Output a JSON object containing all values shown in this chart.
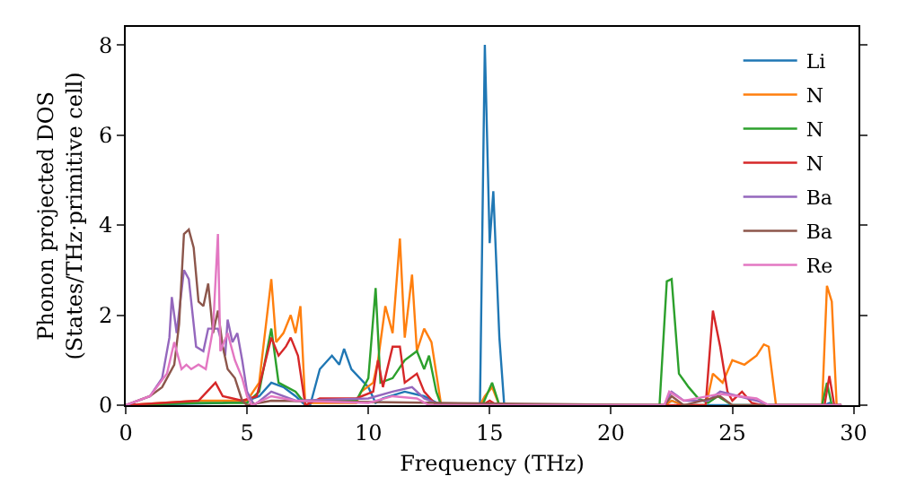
{
  "chart_data": {
    "type": "line",
    "xlabel": "Frequency (THz)",
    "ylabel": "Phonon projected DOS\n(States/THz·primitive cell)",
    "xlim": [
      0,
      30.2
    ],
    "ylim": [
      0,
      8.4
    ],
    "xticks": [
      0,
      5,
      10,
      15,
      20,
      25,
      30
    ],
    "yticks": [
      0,
      2,
      4,
      6,
      8
    ],
    "grid": false,
    "legend": "top right",
    "marker": "none",
    "line_style": "solid",
    "series": [
      {
        "name": "Li",
        "color": "#1f77b4",
        "x": [
          0,
          4,
          5,
          5.5,
          6,
          6.5,
          7,
          7.4,
          7.6,
          8,
          8.5,
          8.8,
          9,
          9.3,
          10,
          10.3,
          10.6,
          11.5,
          12.3,
          13,
          14.6,
          14.8,
          15,
          15.15,
          15.4,
          15.6,
          22.2,
          22.5,
          23,
          28.8,
          29,
          29.2,
          29.5
        ],
        "values": [
          0,
          0.05,
          0.1,
          0.2,
          0.5,
          0.4,
          0.2,
          0,
          0,
          0.8,
          1.1,
          0.9,
          1.25,
          0.8,
          0.4,
          0.05,
          0.15,
          0.3,
          0.2,
          0,
          0,
          8.0,
          3.6,
          4.75,
          1.5,
          0,
          0,
          0.1,
          0,
          0,
          0.05,
          0,
          0
        ]
      },
      {
        "name": "N",
        "color": "#ff7f0e",
        "x": [
          0,
          3,
          5,
          5.5,
          6,
          6.2,
          6.5,
          6.8,
          7,
          7.2,
          7.4,
          7.6,
          9.5,
          9.7,
          10.2,
          10.4,
          10.7,
          11,
          11.3,
          11.5,
          11.8,
          12,
          12.3,
          12.6,
          13,
          14.6,
          14.8,
          15.1,
          15.4,
          22.2,
          22.5,
          23,
          23.9,
          24,
          24.2,
          24.6,
          25,
          25.5,
          26,
          26.3,
          26.5,
          26.8,
          28.7,
          28.9,
          29.1,
          29.3,
          29.5
        ],
        "values": [
          0,
          0.1,
          0.1,
          0.5,
          2.8,
          1.4,
          1.6,
          2.0,
          1.6,
          2.2,
          0,
          0.05,
          0.05,
          0.3,
          0.5,
          1.0,
          2.2,
          1.6,
          3.7,
          1.5,
          2.9,
          1.2,
          1.7,
          1.4,
          0,
          0,
          0.2,
          0.4,
          0,
          0,
          0.1,
          0,
          0,
          0.2,
          0.7,
          0.5,
          1.0,
          0.9,
          1.1,
          1.35,
          1.3,
          0,
          0,
          2.65,
          2.3,
          0,
          0
        ]
      },
      {
        "name": "N",
        "color": "#2ca02c",
        "x": [
          0,
          3,
          5,
          5.5,
          6,
          6.3,
          7,
          7.3,
          9.5,
          10,
          10.3,
          10.5,
          11,
          11.5,
          12,
          12.3,
          12.5,
          12.8,
          13,
          14.7,
          15.1,
          15.4,
          22,
          22.3,
          22.5,
          22.8,
          23.2,
          23.6,
          24,
          24.4,
          25,
          28.7,
          28.9,
          29.1,
          29.5
        ],
        "values": [
          0,
          0.05,
          0.05,
          0.3,
          1.7,
          0.5,
          0.3,
          0.1,
          0.1,
          0.6,
          2.6,
          0.5,
          0.6,
          1.0,
          1.2,
          0.8,
          1.1,
          0.3,
          0,
          0,
          0.5,
          0,
          0,
          2.75,
          2.8,
          0.7,
          0.4,
          0.15,
          0.05,
          0.2,
          0,
          0,
          0.5,
          0,
          0
        ]
      },
      {
        "name": "N",
        "color": "#d62728",
        "x": [
          0,
          3,
          3.7,
          4,
          4.8,
          5.4,
          6,
          6.3,
          6.6,
          6.8,
          7.1,
          7.4,
          8,
          9.5,
          10.2,
          10.4,
          10.6,
          11,
          11.3,
          11.5,
          12,
          12.3,
          12.8,
          14.7,
          15,
          15.3,
          23.9,
          24.2,
          24.5,
          24.8,
          25,
          25.4,
          25.8,
          26.2,
          28.8,
          29,
          29.2,
          29.5
        ],
        "values": [
          0,
          0.1,
          0.5,
          0.2,
          0.1,
          0.2,
          1.5,
          1.1,
          1.3,
          1.5,
          1.1,
          0,
          0.15,
          0.15,
          0.3,
          1.0,
          0.4,
          1.3,
          1.3,
          0.5,
          0.7,
          0.3,
          0,
          0,
          0.1,
          0,
          0,
          2.1,
          1.3,
          0.3,
          0.1,
          0.3,
          0.05,
          0,
          0,
          0.65,
          0,
          0
        ]
      },
      {
        "name": "Ba",
        "color": "#9467bd",
        "x": [
          0,
          1,
          1.5,
          1.8,
          1.9,
          2.1,
          2.4,
          2.6,
          2.9,
          3.2,
          3.4,
          3.8,
          4.1,
          4.2,
          4.4,
          4.6,
          4.8,
          5,
          5.3,
          6,
          7,
          10,
          11,
          11.8,
          12.3,
          13,
          22.2,
          22.5,
          23,
          24,
          24.5,
          26,
          26.5,
          29.5
        ],
        "values": [
          0,
          0.2,
          0.6,
          1.5,
          2.4,
          1.6,
          3.0,
          2.8,
          1.3,
          1.2,
          1.7,
          1.7,
          1.1,
          1.9,
          1.4,
          1.6,
          1.0,
          0.3,
          0,
          0.3,
          0.1,
          0.15,
          0.3,
          0.4,
          0.15,
          0,
          0,
          0.3,
          0.1,
          0.1,
          0.3,
          0.1,
          0,
          0
        ]
      },
      {
        "name": "Ba",
        "color": "#8c564b",
        "x": [
          0,
          1,
          1.5,
          2,
          2.2,
          2.4,
          2.6,
          2.8,
          3,
          3.2,
          3.4,
          3.6,
          3.8,
          4,
          4.2,
          4.5,
          4.8,
          5,
          6,
          13,
          22.2,
          22.5,
          23,
          24.5,
          25,
          29.5
        ],
        "values": [
          0,
          0.2,
          0.4,
          0.9,
          1.8,
          3.8,
          3.9,
          3.5,
          2.3,
          2.2,
          2.7,
          1.6,
          2.1,
          1.3,
          0.8,
          0.6,
          0.1,
          0,
          0.1,
          0.05,
          0,
          0.2,
          0,
          0.2,
          0,
          0
        ]
      },
      {
        "name": "Re",
        "color": "#e377c2",
        "x": [
          0,
          1,
          1.7,
          2,
          2.3,
          2.5,
          2.7,
          3,
          3.3,
          3.6,
          3.8,
          3.9,
          4.2,
          4.5,
          4.8,
          5,
          5.2,
          6,
          7,
          10,
          11,
          12,
          12.5,
          22.2,
          22.4,
          23,
          24.5,
          26,
          26.5,
          29.5
        ],
        "values": [
          0,
          0.2,
          0.7,
          1.4,
          0.8,
          0.9,
          0.8,
          0.9,
          0.8,
          1.7,
          3.8,
          1.2,
          1.6,
          1.0,
          0.6,
          0.2,
          0,
          0.2,
          0.1,
          0.05,
          0.2,
          0.15,
          0,
          0,
          0.3,
          0.1,
          0.25,
          0.15,
          0,
          0
        ]
      }
    ]
  }
}
